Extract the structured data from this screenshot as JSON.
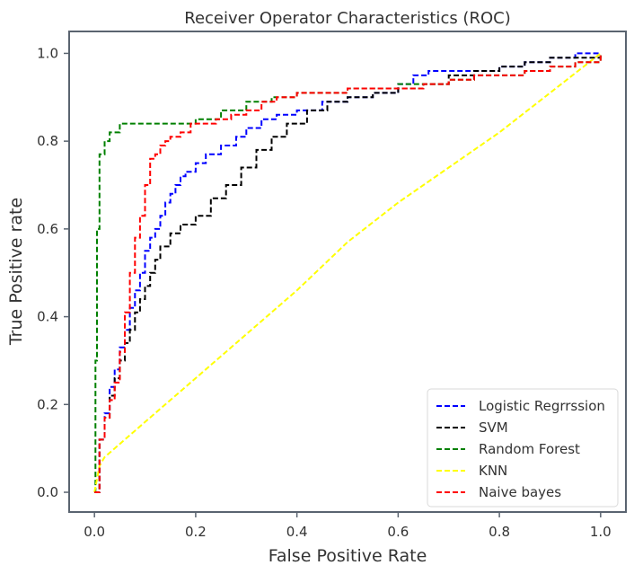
{
  "chart_data": {
    "type": "line",
    "title": "Receiver Operator Characteristics (ROC)",
    "xlabel": "False Positive Rate",
    "ylabel": "True Positive rate",
    "xlim": [
      -0.05,
      1.05
    ],
    "ylim": [
      -0.045,
      1.05
    ],
    "xticks": [
      0.0,
      0.2,
      0.4,
      0.6,
      0.8,
      1.0
    ],
    "yticks": [
      0.0,
      0.2,
      0.4,
      0.6,
      0.8,
      1.0
    ],
    "tick_labels_x": [
      "0.0",
      "0.2",
      "0.4",
      "0.6",
      "0.8",
      "1.0"
    ],
    "tick_labels_y": [
      "0.0",
      "0.2",
      "0.4",
      "0.6",
      "0.8",
      "1.0"
    ],
    "grid": false,
    "legend_position": "lower-right",
    "line_style": "dashed",
    "series": [
      {
        "name": "Logistic Regrrssion",
        "color": "#0000ff",
        "x": [
          0.0,
          0.01,
          0.02,
          0.03,
          0.04,
          0.05,
          0.06,
          0.07,
          0.08,
          0.09,
          0.1,
          0.11,
          0.12,
          0.13,
          0.14,
          0.15,
          0.16,
          0.17,
          0.18,
          0.2,
          0.22,
          0.25,
          0.28,
          0.3,
          0.33,
          0.36,
          0.4,
          0.45,
          0.5,
          0.55,
          0.6,
          0.63,
          0.66,
          0.7,
          0.75,
          0.8,
          0.85,
          0.9,
          0.95,
          1.0
        ],
        "y": [
          0.0,
          0.12,
          0.18,
          0.24,
          0.28,
          0.33,
          0.37,
          0.42,
          0.46,
          0.5,
          0.55,
          0.58,
          0.6,
          0.63,
          0.66,
          0.68,
          0.7,
          0.72,
          0.73,
          0.75,
          0.77,
          0.79,
          0.81,
          0.83,
          0.85,
          0.86,
          0.87,
          0.89,
          0.9,
          0.91,
          0.93,
          0.95,
          0.96,
          0.96,
          0.96,
          0.97,
          0.98,
          0.99,
          1.0,
          1.0
        ]
      },
      {
        "name": "SVM",
        "color": "#000000",
        "x": [
          0.0,
          0.01,
          0.02,
          0.03,
          0.04,
          0.05,
          0.06,
          0.07,
          0.08,
          0.09,
          0.1,
          0.11,
          0.12,
          0.13,
          0.15,
          0.17,
          0.2,
          0.23,
          0.26,
          0.29,
          0.32,
          0.35,
          0.38,
          0.42,
          0.46,
          0.5,
          0.55,
          0.6,
          0.65,
          0.7,
          0.75,
          0.8,
          0.85,
          0.9,
          0.95,
          1.0
        ],
        "y": [
          0.0,
          0.12,
          0.17,
          0.22,
          0.26,
          0.3,
          0.34,
          0.37,
          0.41,
          0.44,
          0.47,
          0.5,
          0.53,
          0.56,
          0.59,
          0.61,
          0.63,
          0.67,
          0.7,
          0.74,
          0.78,
          0.81,
          0.84,
          0.87,
          0.89,
          0.9,
          0.91,
          0.92,
          0.93,
          0.95,
          0.96,
          0.97,
          0.98,
          0.99,
          0.99,
          1.0
        ]
      },
      {
        "name": "Random Forest",
        "color": "#008000",
        "x": [
          0.0,
          0.002,
          0.005,
          0.01,
          0.02,
          0.03,
          0.05,
          0.07,
          0.1,
          0.15,
          0.2,
          0.25,
          0.3,
          0.35,
          0.4,
          0.45,
          0.5,
          0.55,
          0.6,
          0.65,
          0.7,
          0.75,
          0.8,
          0.85,
          0.9,
          0.95,
          1.0
        ],
        "y": [
          0.0,
          0.3,
          0.6,
          0.77,
          0.8,
          0.82,
          0.84,
          0.84,
          0.84,
          0.84,
          0.85,
          0.87,
          0.89,
          0.9,
          0.91,
          0.91,
          0.92,
          0.92,
          0.93,
          0.93,
          0.94,
          0.95,
          0.95,
          0.96,
          0.97,
          0.98,
          1.0
        ]
      },
      {
        "name": "KNN",
        "color": "#ffff00",
        "x": [
          0.0,
          0.01,
          0.02,
          0.1,
          0.2,
          0.3,
          0.4,
          0.5,
          0.6,
          0.7,
          0.8,
          0.9,
          1.0
        ],
        "y": [
          0.0,
          0.06,
          0.08,
          0.16,
          0.26,
          0.36,
          0.46,
          0.57,
          0.66,
          0.74,
          0.82,
          0.91,
          1.0
        ]
      },
      {
        "name": "Naive bayes",
        "color": "#ff0000",
        "x": [
          0.0,
          0.01,
          0.02,
          0.03,
          0.04,
          0.05,
          0.06,
          0.07,
          0.08,
          0.09,
          0.1,
          0.11,
          0.12,
          0.13,
          0.14,
          0.15,
          0.17,
          0.19,
          0.21,
          0.24,
          0.27,
          0.3,
          0.33,
          0.36,
          0.4,
          0.45,
          0.5,
          0.55,
          0.6,
          0.65,
          0.7,
          0.75,
          0.8,
          0.85,
          0.9,
          0.95,
          1.0
        ],
        "y": [
          0.0,
          0.12,
          0.17,
          0.21,
          0.25,
          0.32,
          0.41,
          0.5,
          0.58,
          0.63,
          0.7,
          0.76,
          0.77,
          0.79,
          0.8,
          0.81,
          0.82,
          0.84,
          0.84,
          0.85,
          0.86,
          0.87,
          0.89,
          0.9,
          0.91,
          0.91,
          0.92,
          0.92,
          0.92,
          0.93,
          0.94,
          0.95,
          0.95,
          0.96,
          0.97,
          0.98,
          1.0
        ]
      }
    ]
  }
}
